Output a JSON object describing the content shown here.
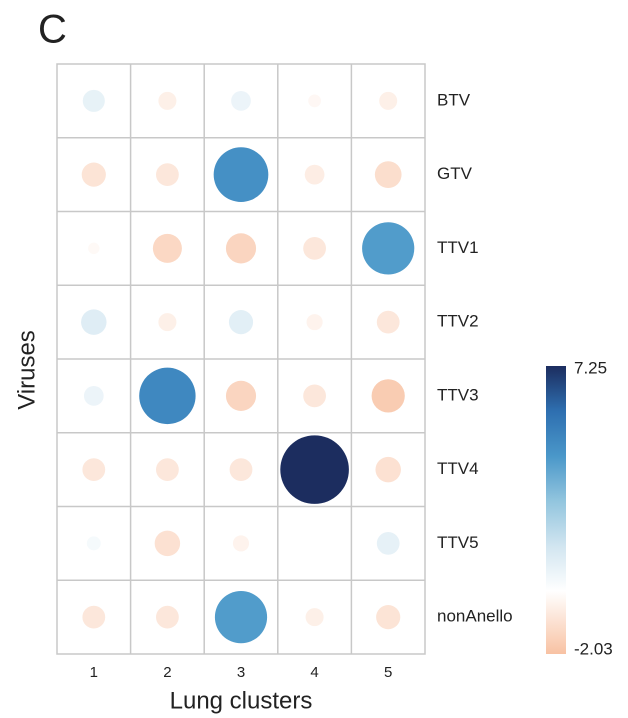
{
  "chart_data": {
    "type": "bubble-matrix",
    "panel_label": "C",
    "x_label": "Lung clusters",
    "y_label": "Viruses",
    "categories": [
      "1",
      "2",
      "3",
      "4",
      "5"
    ],
    "series": [
      {
        "name": "BTV",
        "values": [
          0.75,
          -0.5,
          0.6,
          -0.25,
          -0.5
        ]
      },
      {
        "name": "GTV",
        "values": [
          -0.9,
          -0.8,
          4.6,
          -0.6,
          -1.1
        ]
      },
      {
        "name": "TTV1",
        "values": [
          -0.2,
          -1.3,
          -1.4,
          -0.8,
          4.2
        ]
      },
      {
        "name": "TTV2",
        "values": [
          1.0,
          -0.5,
          0.9,
          -0.4,
          -0.8
        ]
      },
      {
        "name": "TTV3",
        "values": [
          0.6,
          4.9,
          -1.4,
          -0.8,
          -1.7
        ]
      },
      {
        "name": "TTV4",
        "values": [
          -0.8,
          -0.8,
          -0.8,
          7.25,
          -1.0
        ]
      },
      {
        "name": "TTV5",
        "values": [
          0.3,
          -1.0,
          -0.4,
          0,
          0.8
        ]
      },
      {
        "name": "nonAnello",
        "values": [
          -0.8,
          -0.8,
          4.2,
          -0.5,
          -0.9
        ]
      }
    ],
    "zlim": [
      -2.03,
      7.25
    ],
    "negative_colors": [
      "#ffffff",
      "#f8c2a3"
    ],
    "positive_colors": [
      "#ffffff",
      "#d1e5f0",
      "#92c5de",
      "#4a97c9",
      "#2e6fb0",
      "#1c2d5f"
    ]
  }
}
